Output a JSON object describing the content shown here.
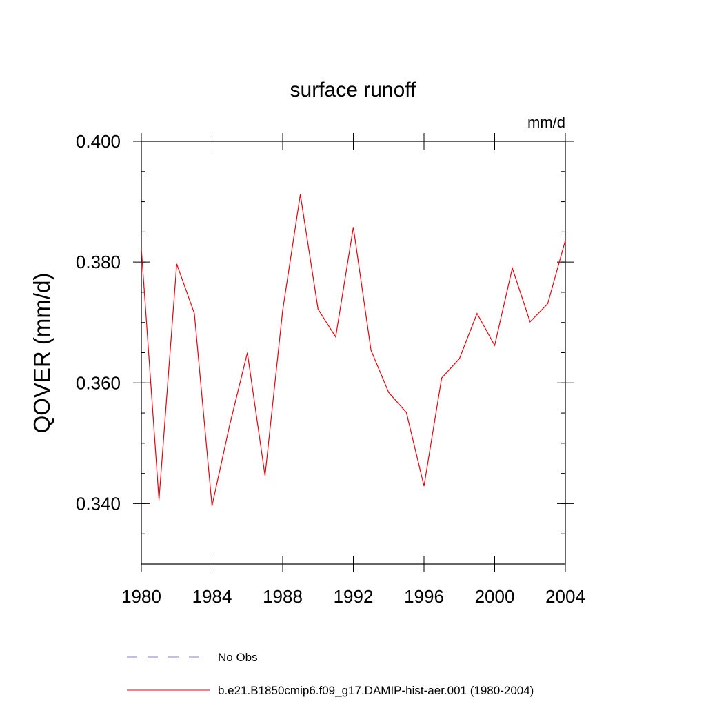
{
  "chart_data": {
    "type": "line",
    "title": "surface runoff",
    "units_label": "mm/d",
    "ylabel": "QOVER  (mm/d)",
    "xlabel": "",
    "xlim": [
      1980,
      2004
    ],
    "ylim": [
      0.33,
      0.4
    ],
    "x_major_ticks": [
      1980,
      1984,
      1988,
      1992,
      1996,
      2000,
      2004
    ],
    "x_tick_labels": [
      "1980",
      "1984",
      "1988",
      "1992",
      "1996",
      "2000",
      "2004"
    ],
    "y_major_ticks": [
      0.34,
      0.36,
      0.38,
      0.4
    ],
    "y_tick_labels": [
      "0.340",
      "0.360",
      "0.380",
      "0.400"
    ],
    "y_minor_step": 0.005,
    "grid": false,
    "x": [
      1980,
      1981,
      1982,
      1983,
      1984,
      1985,
      1986,
      1987,
      1988,
      1989,
      1990,
      1991,
      1992,
      1993,
      1994,
      1995,
      1996,
      1997,
      1998,
      1999,
      2000,
      2001,
      2002,
      2003,
      2004
    ],
    "series": [
      {
        "name": "b.e21.B1850cmip6.f09_g17.DAMIP-hist-aer.001 (1980-2004)",
        "color": "#e8000b",
        "style": "solid",
        "values": [
          0.3822,
          0.3406,
          0.3797,
          0.3715,
          0.3396,
          0.353,
          0.365,
          0.3446,
          0.372,
          0.3912,
          0.3722,
          0.3676,
          0.3858,
          0.3654,
          0.3584,
          0.3551,
          0.3429,
          0.3608,
          0.364,
          0.3715,
          0.3662,
          0.379,
          0.3701,
          0.3731,
          0.3836
        ]
      }
    ],
    "legend": {
      "placement": "bottom",
      "entries": [
        {
          "label": "No Obs",
          "color": "#8080c8",
          "style": "dashed"
        },
        {
          "label": "b.e21.B1850cmip6.f09_g17.DAMIP-hist-aer.001 (1980-2004)",
          "color": "#e8000b",
          "style": "solid"
        }
      ]
    }
  }
}
